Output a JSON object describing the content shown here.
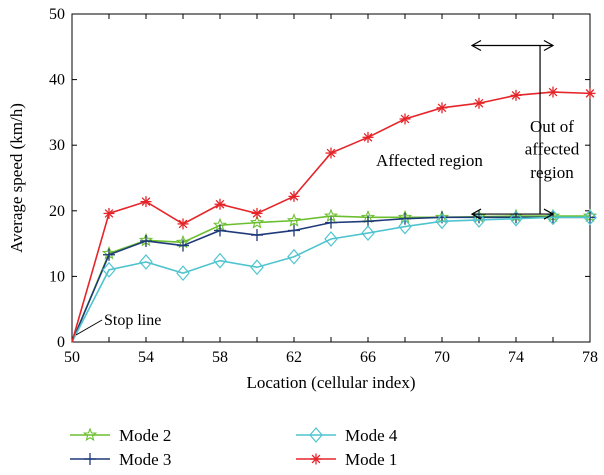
{
  "chart_data": {
    "type": "line",
    "xlabel": "Location (cellular index)",
    "ylabel": "Average speed (km/h)",
    "xlim": [
      50,
      78
    ],
    "ylim": [
      0,
      50
    ],
    "xticks": [
      50,
      54,
      58,
      62,
      66,
      70,
      74,
      78
    ],
    "xtick_minor": [
      52,
      56,
      60,
      64,
      68,
      72,
      76
    ],
    "yticks": [
      0,
      10,
      20,
      30,
      40,
      50
    ],
    "grid": false,
    "legend_position": "bottom",
    "x": [
      50,
      52,
      54,
      56,
      58,
      60,
      62,
      64,
      66,
      68,
      70,
      72,
      74,
      76,
      78
    ],
    "series": [
      {
        "name": "Mode 2",
        "color": "#6bbf2e",
        "marker": "star",
        "values": [
          0,
          13.5,
          15.5,
          15.2,
          17.8,
          18.2,
          18.5,
          19.2,
          19.0,
          19.0,
          19.0,
          19.1,
          19.2,
          19.2,
          19.2
        ]
      },
      {
        "name": "Mode 3",
        "color": "#1f3a78",
        "marker": "plus",
        "values": [
          0,
          13.3,
          15.4,
          14.7,
          17.0,
          16.3,
          17.0,
          18.2,
          18.4,
          18.8,
          19.0,
          19.0,
          19.0,
          19.0,
          19.0
        ]
      },
      {
        "name": "Mode 4",
        "color": "#4fc4cf",
        "marker": "diamond",
        "values": [
          0,
          11.0,
          12.2,
          10.5,
          12.4,
          11.4,
          13.0,
          15.7,
          16.6,
          17.6,
          18.4,
          18.6,
          18.8,
          19.0,
          19.0
        ]
      },
      {
        "name": "Mode 1",
        "color": "#e5252a",
        "marker": "asterisk",
        "values": [
          0,
          19.6,
          21.4,
          18.0,
          21.0,
          19.6,
          22.2,
          28.8,
          31.2,
          34.0,
          35.7,
          36.4,
          37.6,
          38.1,
          37.9
        ]
      }
    ],
    "annotations": {
      "stop_line": "Stop line",
      "affected": "Affected region",
      "out_line1": "Out of",
      "out_line2": "affected",
      "out_line3": "region"
    },
    "boundary_x": 75.3
  }
}
